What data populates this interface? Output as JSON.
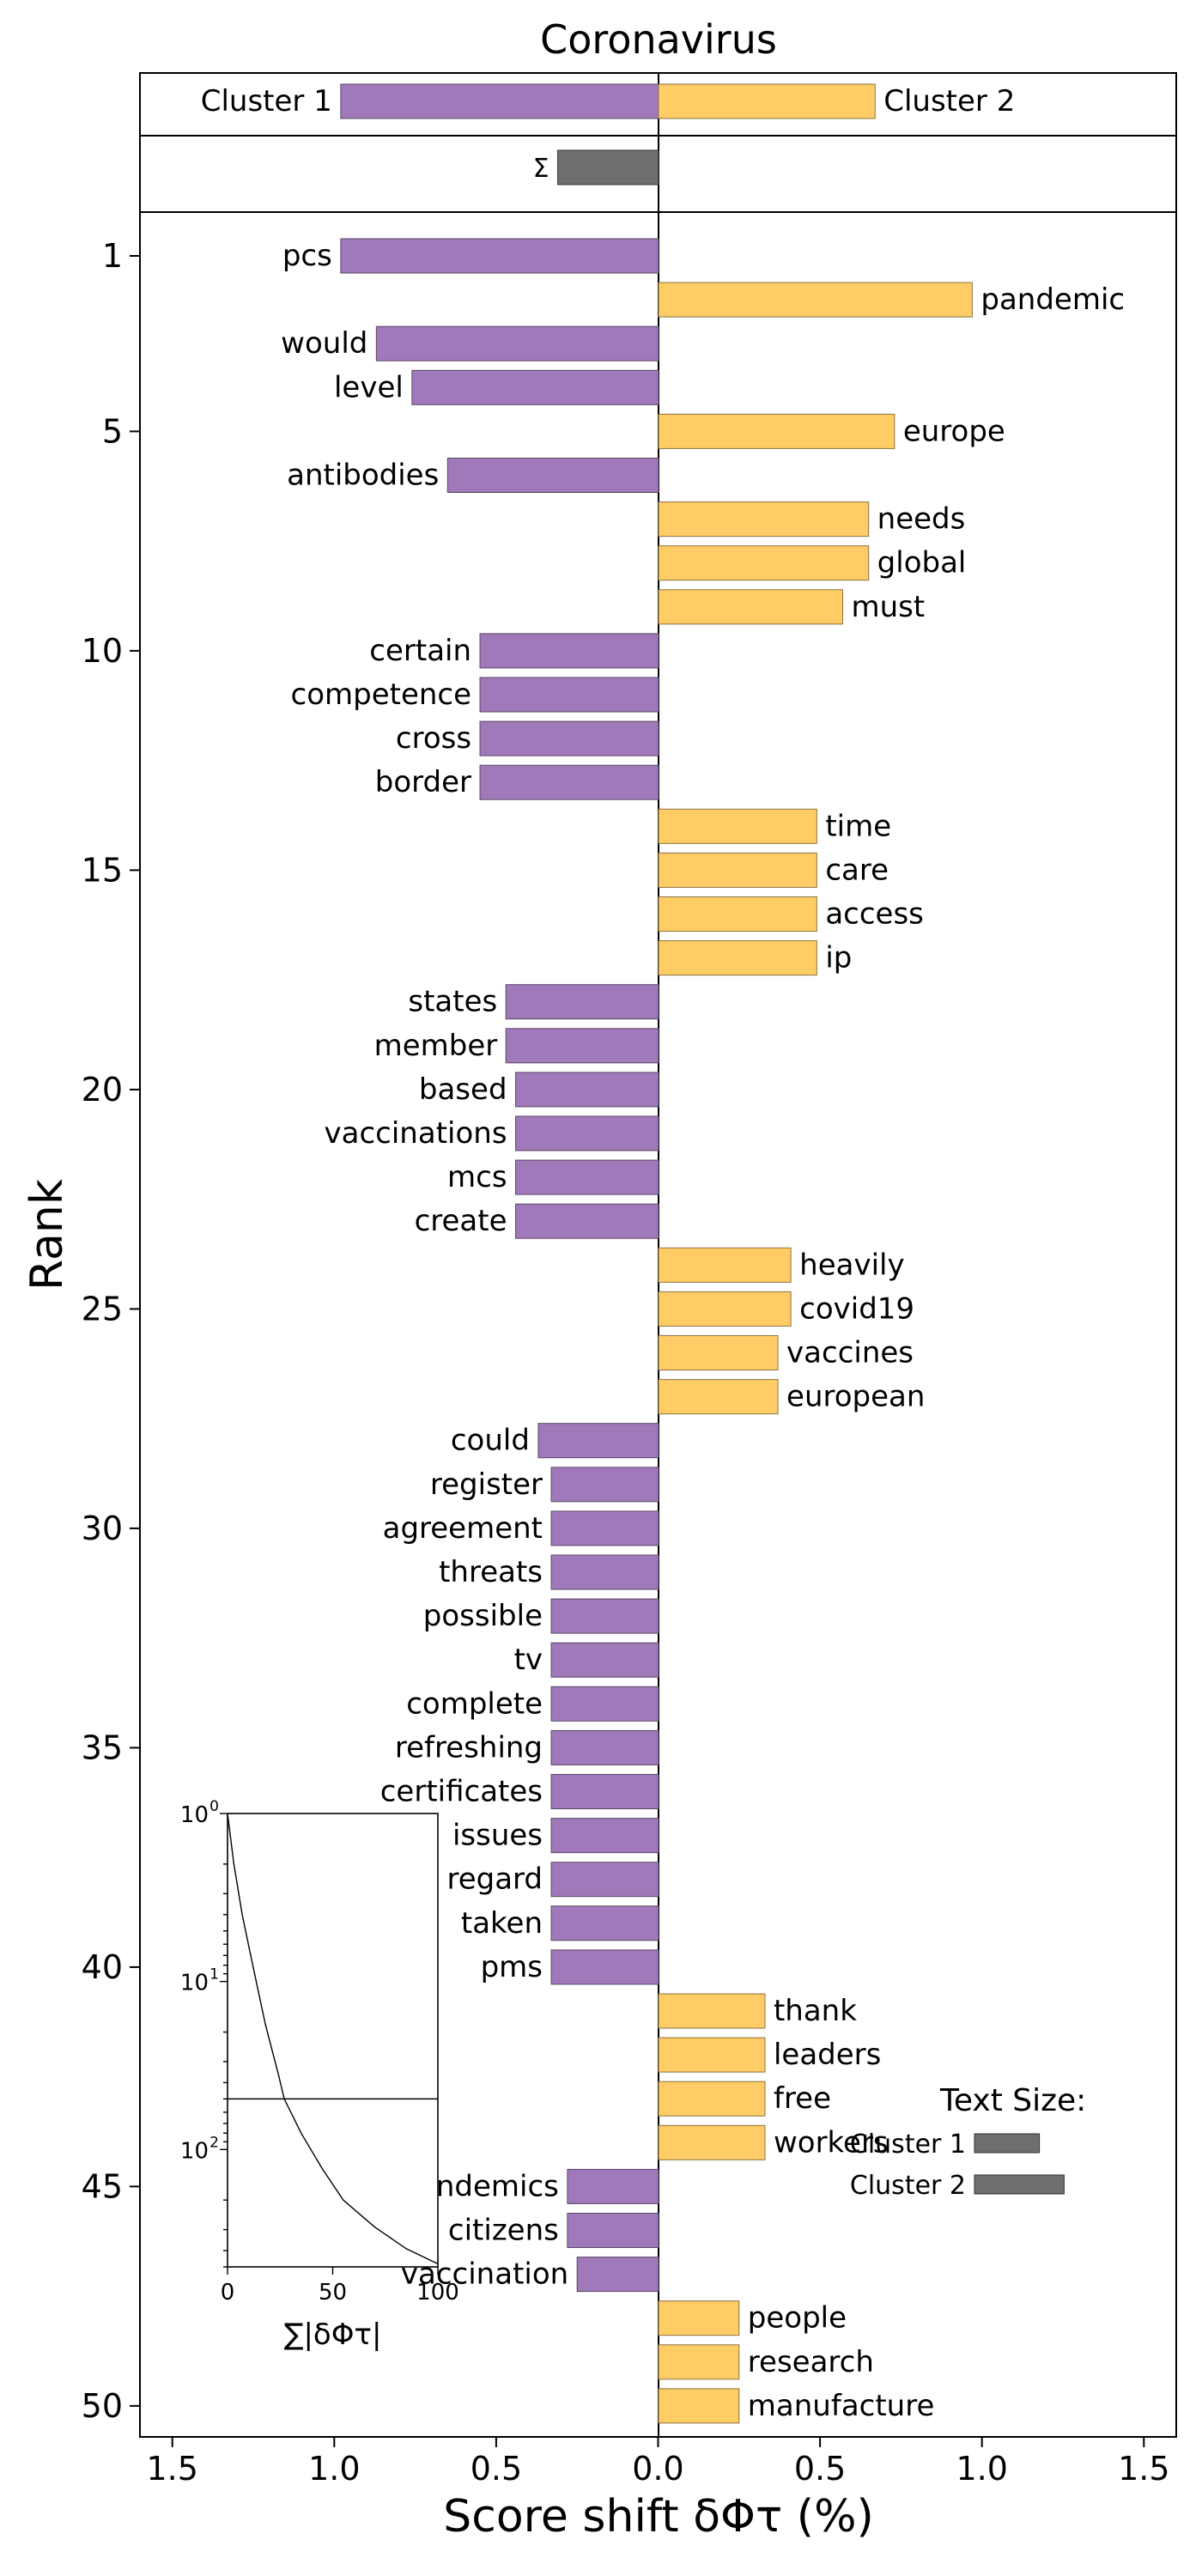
{
  "chart_data": {
    "type": "bar",
    "title": "Coronavirus",
    "xlabel": "Score shift δΦτ (%)",
    "ylabel": "Rank",
    "xlim": [
      -1.6,
      1.6
    ],
    "x_ticks": [
      -1.5,
      -1.0,
      -0.5,
      0.0,
      0.5,
      1.0,
      1.5
    ],
    "x_tick_labels": [
      "1.5",
      "1.0",
      "0.5",
      "0.0",
      "0.5",
      "1.0",
      "1.5"
    ],
    "y_ticks": [
      1,
      5,
      10,
      15,
      20,
      25,
      30,
      35,
      40,
      45,
      50
    ],
    "colors": {
      "cluster1": "#9f79b9",
      "cluster2": "#ffcc66",
      "sum": "#6e6e6e"
    },
    "summary": {
      "cluster1": {
        "label": "Cluster 1",
        "value": -0.98
      },
      "cluster2": {
        "label": "Cluster 2",
        "value": 0.67
      },
      "sum": {
        "label": "Σ",
        "value": -0.31
      }
    },
    "ranks": [
      {
        "rank": 1,
        "word": "pcs",
        "value": -0.98
      },
      {
        "rank": 2,
        "word": "pandemic",
        "value": 0.97
      },
      {
        "rank": 3,
        "word": "would",
        "value": -0.87
      },
      {
        "rank": 4,
        "word": "level",
        "value": -0.76
      },
      {
        "rank": 5,
        "word": "europe",
        "value": 0.73
      },
      {
        "rank": 6,
        "word": "antibodies",
        "value": -0.65
      },
      {
        "rank": 7,
        "word": "needs",
        "value": 0.65
      },
      {
        "rank": 8,
        "word": "global",
        "value": 0.65
      },
      {
        "rank": 9,
        "word": "must",
        "value": 0.57
      },
      {
        "rank": 10,
        "word": "certain",
        "value": -0.55
      },
      {
        "rank": 11,
        "word": "competence",
        "value": -0.55
      },
      {
        "rank": 12,
        "word": "cross",
        "value": -0.55
      },
      {
        "rank": 13,
        "word": "border",
        "value": -0.55
      },
      {
        "rank": 14,
        "word": "time",
        "value": 0.49
      },
      {
        "rank": 15,
        "word": "care",
        "value": 0.49
      },
      {
        "rank": 16,
        "word": "access",
        "value": 0.49
      },
      {
        "rank": 17,
        "word": "ip",
        "value": 0.49
      },
      {
        "rank": 18,
        "word": "states",
        "value": -0.47
      },
      {
        "rank": 19,
        "word": "member",
        "value": -0.47
      },
      {
        "rank": 20,
        "word": "based",
        "value": -0.44
      },
      {
        "rank": 21,
        "word": "vaccinations",
        "value": -0.44
      },
      {
        "rank": 22,
        "word": "mcs",
        "value": -0.44
      },
      {
        "rank": 23,
        "word": "create",
        "value": -0.44
      },
      {
        "rank": 24,
        "word": "heavily",
        "value": 0.41
      },
      {
        "rank": 25,
        "word": "covid19",
        "value": 0.41
      },
      {
        "rank": 26,
        "word": "vaccines",
        "value": 0.37
      },
      {
        "rank": 27,
        "word": "european",
        "value": 0.37
      },
      {
        "rank": 28,
        "word": "could",
        "value": -0.37
      },
      {
        "rank": 29,
        "word": "register",
        "value": -0.33
      },
      {
        "rank": 30,
        "word": "agreement",
        "value": -0.33
      },
      {
        "rank": 31,
        "word": "threats",
        "value": -0.33
      },
      {
        "rank": 32,
        "word": "possible",
        "value": -0.33
      },
      {
        "rank": 33,
        "word": "tv",
        "value": -0.33
      },
      {
        "rank": 34,
        "word": "complete",
        "value": -0.33
      },
      {
        "rank": 35,
        "word": "refreshing",
        "value": -0.33
      },
      {
        "rank": 36,
        "word": "certificates",
        "value": -0.33
      },
      {
        "rank": 37,
        "word": "issues",
        "value": -0.33
      },
      {
        "rank": 38,
        "word": "regard",
        "value": -0.33
      },
      {
        "rank": 39,
        "word": "taken",
        "value": -0.33
      },
      {
        "rank": 40,
        "word": "pms",
        "value": -0.33
      },
      {
        "rank": 41,
        "word": "thank",
        "value": 0.33
      },
      {
        "rank": 42,
        "word": "leaders",
        "value": 0.33
      },
      {
        "rank": 43,
        "word": "free",
        "value": 0.33
      },
      {
        "rank": 44,
        "word": "workers",
        "value": 0.33
      },
      {
        "rank": 45,
        "word": "pandemics",
        "value": -0.28
      },
      {
        "rank": 46,
        "word": "citizens",
        "value": -0.28
      },
      {
        "rank": 47,
        "word": "vaccination",
        "value": -0.25
      },
      {
        "rank": 48,
        "word": "people",
        "value": 0.25
      },
      {
        "rank": 49,
        "word": "research",
        "value": 0.25
      },
      {
        "rank": 50,
        "word": "manufacture",
        "value": 0.25
      }
    ],
    "inset": {
      "xlabel": "∑|δΦτ|",
      "x_ticks": [
        0,
        50,
        100
      ],
      "y_tick_labels": [
        "10",
        "10",
        "10"
      ],
      "y_tick_exponents": [
        "0",
        "1",
        "2"
      ],
      "xlim": [
        0,
        100
      ],
      "ylim_log_rank": [
        1,
        500
      ],
      "hline_rank": 50,
      "curve": [
        {
          "x": 0,
          "rank": 1
        },
        {
          "x": 3,
          "rank": 2
        },
        {
          "x": 7,
          "rank": 4
        },
        {
          "x": 12,
          "rank": 8
        },
        {
          "x": 18,
          "rank": 18
        },
        {
          "x": 24,
          "rank": 35
        },
        {
          "x": 27,
          "rank": 50
        },
        {
          "x": 35,
          "rank": 80
        },
        {
          "x": 45,
          "rank": 130
        },
        {
          "x": 55,
          "rank": 200
        },
        {
          "x": 70,
          "rank": 290
        },
        {
          "x": 85,
          "rank": 390
        },
        {
          "x": 100,
          "rank": 480
        }
      ]
    },
    "text_size_legend": {
      "title": "Text Size:",
      "items": [
        {
          "label": "Cluster 1",
          "size": 0.42
        },
        {
          "label": "Cluster 2",
          "size": 0.58
        }
      ]
    }
  }
}
